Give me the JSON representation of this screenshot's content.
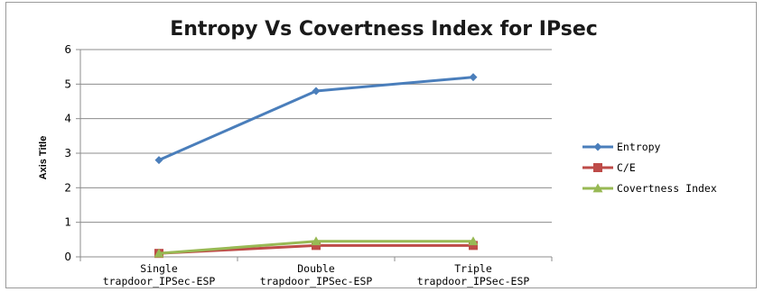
{
  "chart_data": {
    "type": "line",
    "title": "Entropy Vs Covertness Index for IPsec",
    "xlabel": "",
    "ylabel": "Axis Title",
    "ylim": [
      0,
      6
    ],
    "yticks": [
      "0",
      "1",
      "2",
      "3",
      "4",
      "5",
      "6"
    ],
    "grid": true,
    "legend_position": "right",
    "categories": [
      [
        "Single",
        "trapdoor_IPSec-ESP"
      ],
      [
        "Double",
        "trapdoor_IPSec-ESP"
      ],
      [
        "Triple",
        "trapdoor_IPSec-ESP"
      ]
    ],
    "series": [
      {
        "name": "Entropy",
        "values": [
          2.8,
          4.8,
          5.2
        ],
        "color": "#4a7ebb",
        "marker": "diamond"
      },
      {
        "name": "C/E",
        "values": [
          0.1,
          0.33,
          0.33
        ],
        "color": "#be4b48",
        "marker": "square"
      },
      {
        "name": "Covertness Index",
        "values": [
          0.1,
          0.45,
          0.45
        ],
        "color": "#98b954",
        "marker": "triangle"
      }
    ]
  }
}
